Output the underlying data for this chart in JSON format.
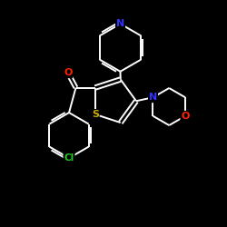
{
  "background_color": "#000000",
  "bond_color": "#ffffff",
  "atom_colors": {
    "N": "#3333ff",
    "O": "#ff2200",
    "S": "#ccaa00",
    "Cl": "#22cc22",
    "C": "#ffffff"
  },
  "figsize": [
    2.5,
    2.5
  ],
  "dpi": 100,
  "lw": 1.4,
  "xlim": [
    0,
    10
  ],
  "ylim": [
    0,
    10
  ]
}
